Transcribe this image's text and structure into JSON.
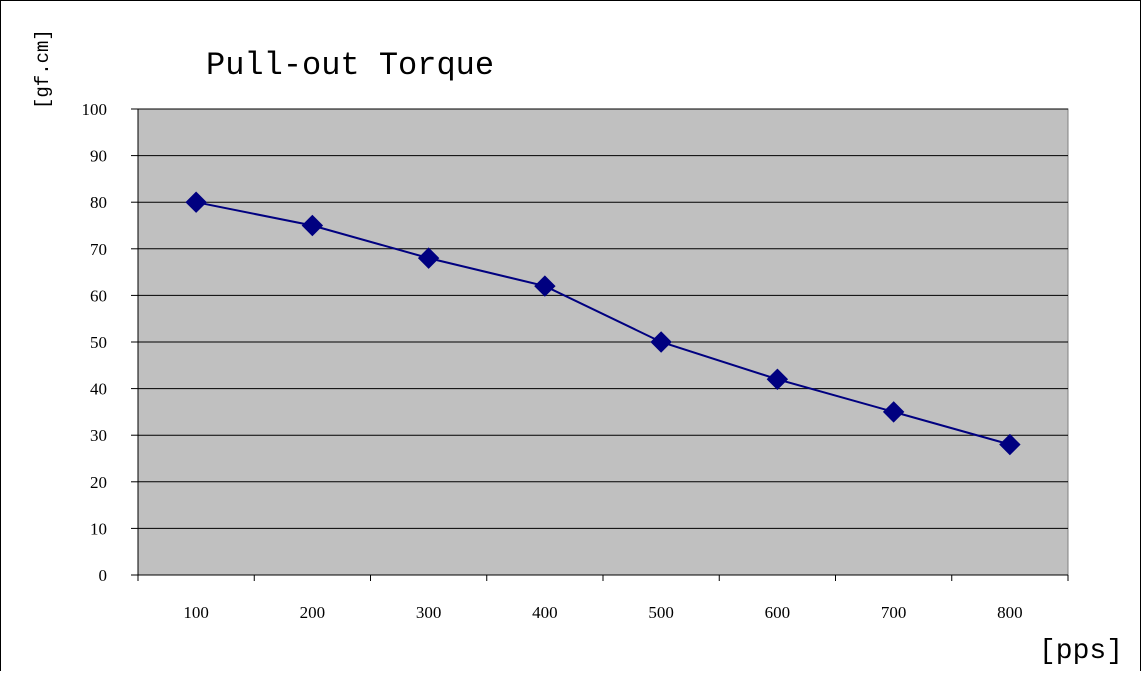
{
  "chart_data": {
    "type": "line",
    "title": "Pull-out Torque",
    "xlabel": "[pps]",
    "ylabel": "[gf.cm]",
    "categories": [
      "100",
      "200",
      "300",
      "400",
      "500",
      "600",
      "700",
      "800"
    ],
    "series": [
      {
        "values": [
          80,
          75,
          68,
          62,
          50,
          42,
          35,
          28
        ]
      }
    ],
    "ylim": [
      0,
      100
    ],
    "yticks": [
      0,
      10,
      20,
      30,
      40,
      50,
      60,
      70,
      80,
      90,
      100
    ],
    "grid": true,
    "legend": "none",
    "colors": {
      "plot_background": "#c0c0c0",
      "series": "#000080",
      "gridline": "#000000"
    },
    "marker": "diamond"
  }
}
